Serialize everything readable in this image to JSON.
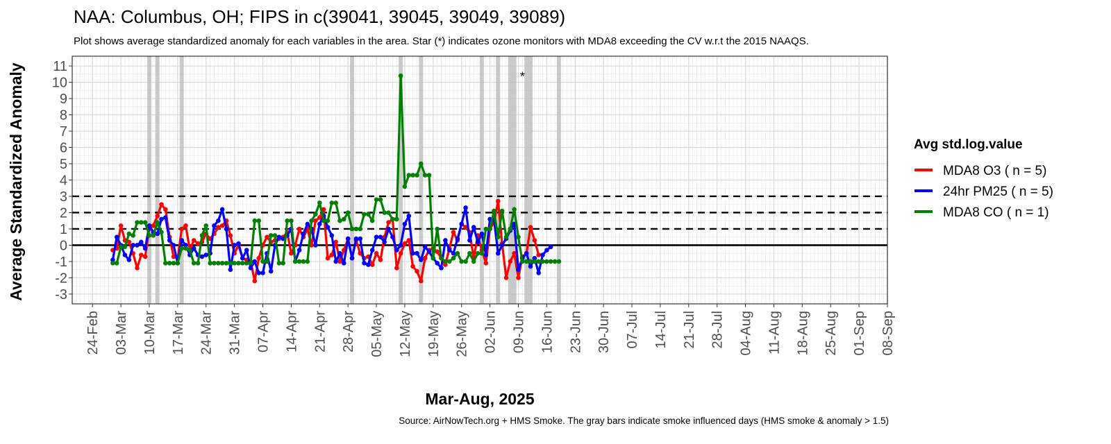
{
  "chart_data": {
    "type": "line",
    "title": "NAA: Columbus, OH; FIPS in c(39041, 39045, 39049, 39089)",
    "subtitle": "Plot shows average standardized anomaly for each variables in the area. Star (*) indicates ozone monitors with MDA8 exceeding the CV w.r.t the 2015 NAAQS.",
    "xlabel": "Mar-Aug, 2025",
    "ylabel": "Average Standardized Anomaly",
    "caption": "Source: AirNowTech.org + HMS Smoke. The gray bars indicate smoke influenced days (HMS smoke & anomaly > 1.5)",
    "ylim": [
      -3.6,
      11.6
    ],
    "xlim": [
      "2025-02-19",
      "2025-09-08"
    ],
    "x_ticks": [
      "24-Feb",
      "03-Mar",
      "10-Mar",
      "17-Mar",
      "24-Mar",
      "31-Mar",
      "07-Apr",
      "14-Apr",
      "21-Apr",
      "28-Apr",
      "05-May",
      "12-May",
      "19-May",
      "26-May",
      "02-Jun",
      "09-Jun",
      "16-Jun",
      "23-Jun",
      "30-Jun",
      "07-Jul",
      "14-Jul",
      "21-Jul",
      "28-Jul",
      "04-Aug",
      "11-Aug",
      "18-Aug",
      "25-Aug",
      "01-Sep",
      "08-Sep"
    ],
    "x_tick_dates": [
      "2025-02-24",
      "2025-03-03",
      "2025-03-10",
      "2025-03-17",
      "2025-03-24",
      "2025-03-31",
      "2025-04-07",
      "2025-04-14",
      "2025-04-21",
      "2025-04-28",
      "2025-05-05",
      "2025-05-12",
      "2025-05-19",
      "2025-05-26",
      "2025-06-02",
      "2025-06-09",
      "2025-06-16",
      "2025-06-23",
      "2025-06-30",
      "2025-07-07",
      "2025-07-14",
      "2025-07-21",
      "2025-07-28",
      "2025-08-04",
      "2025-08-11",
      "2025-08-18",
      "2025-08-25",
      "2025-09-01",
      "2025-09-08"
    ],
    "y_ticks": [
      -3,
      -2,
      -1,
      0,
      1,
      2,
      3,
      4,
      5,
      6,
      7,
      8,
      9,
      10,
      11
    ],
    "grid": true,
    "reference_lines": [
      {
        "y": 0,
        "style": "solid"
      },
      {
        "y": 1,
        "style": "dashed"
      },
      {
        "y": 2,
        "style": "dashed"
      },
      {
        "y": 3,
        "style": "dashed"
      }
    ],
    "smoke_days": [
      "2025-03-10",
      "2025-03-12",
      "2025-03-18",
      "2025-04-29",
      "2025-05-11",
      "2025-05-16",
      "2025-05-31",
      "2025-06-04",
      "2025-06-07",
      "2025-06-08",
      "2025-06-11",
      "2025-06-12",
      "2025-06-19"
    ],
    "star_annotations": [
      {
        "date": "2025-06-10",
        "y": 10.6,
        "label": "*"
      }
    ],
    "legend": {
      "title": "Avg std.log.value",
      "position": "right"
    },
    "start_date": "2025-03-01",
    "series": [
      {
        "name": "MDA8 O3 ( n = 5)",
        "color": "#ff0000",
        "values": [
          -0.3,
          -0.2,
          1.2,
          0.3,
          0.2,
          -0.5,
          -1.4,
          -0.6,
          -0.7,
          1.0,
          1.2,
          1.8,
          2.5,
          2.2,
          0.5,
          -0.7,
          -0.8,
          1.0,
          1.2,
          -0.3,
          0.3,
          0.1,
          0.2,
          0.7,
          0.4,
          0.7,
          1.1,
          1.2,
          1.5,
          0.6,
          -0.5,
          0.0,
          -0.8,
          -0.9,
          -1.0,
          -2.2,
          -0.8,
          0.0,
          0.5,
          0.2,
          0.3,
          0.4,
          0.5,
          0.8,
          -0.5,
          0.0,
          1.0,
          0.5,
          1.0,
          0.0,
          1.5,
          1.7,
          2.2,
          -0.8,
          -0.6,
          0.2,
          -1.0,
          -0.3,
          0.4,
          -0.8,
          0.3,
          -0.5,
          -0.8,
          -0.7,
          -1.2,
          -0.5,
          -0.9,
          0.5,
          1.4,
          1.6,
          -1.4,
          -0.5,
          0.1,
          0.3,
          -1.3,
          -1.6,
          -2.2,
          -0.8,
          -0.3,
          -0.2,
          -0.4,
          -0.8,
          -1.2,
          -0.2,
          0.8,
          0.3,
          1.3,
          1.1,
          0.8,
          -0.8,
          0.6,
          -0.3,
          -1.1,
          1.0,
          1.4,
          2.7,
          0.1,
          -2.0,
          -1.0,
          -0.5,
          -2.0,
          -0.7,
          -0.5,
          1.1,
          0.3,
          -0.6
        ]
      },
      {
        "name": "24hr PM25 ( n = 5)",
        "color": "#0000ff",
        "values": [
          -0.9,
          0.5,
          0.0,
          -0.6,
          -0.9,
          0.0,
          0.0,
          0.2,
          -0.2,
          1.2,
          0.8,
          0.7,
          1.6,
          1.7,
          0.3,
          0.0,
          -1.1,
          0.3,
          0.0,
          -0.6,
          -0.2,
          -0.6,
          -0.7,
          -0.6,
          -0.5,
          1.2,
          1.5,
          2.2,
          1.0,
          -1.5,
          0.0,
          0.1,
          -0.8,
          -0.3,
          -1.4,
          -1.0,
          -1.7,
          -1.7,
          -0.5,
          -1.6,
          0.0,
          0.5,
          0.4,
          0.6,
          1.0,
          -1.0,
          -0.3,
          0.7,
          1.3,
          1.0,
          0.0,
          1.3,
          1.8,
          1.1,
          0.6,
          -1.0,
          -0.5,
          -1.1,
          0.4,
          -0.8,
          0.4,
          0.4,
          -1.1,
          -1.2,
          -0.3,
          0.5,
          0.5,
          0.2,
          1.0,
          0.5,
          -0.3,
          0.0,
          1.3,
          1.8,
          -0.5,
          -0.5,
          -0.9,
          -0.1,
          -0.4,
          -0.8,
          -1.1,
          -1.4,
          0.3,
          -0.3,
          -0.5,
          0.4,
          1.3,
          2.3,
          0.3,
          1.1,
          0.2,
          0.7,
          -0.6,
          1.6,
          1.6,
          -0.5,
          0.0,
          0.4,
          0.9,
          1.3,
          -1.5,
          -0.8,
          -0.5,
          -1.3,
          -0.8,
          -1.7,
          -0.6,
          -0.3,
          -0.1
        ]
      },
      {
        "name": "MDA8 CO ( n = 1)",
        "color": "#008000",
        "values": [
          -1.1,
          -1.1,
          -0.1,
          -0.1,
          0.7,
          0.6,
          1.4,
          1.4,
          1.4,
          0.6,
          0.6,
          1.4,
          0.8,
          -1.1,
          -1.1,
          -1.1,
          -1.1,
          -0.2,
          -0.2,
          -0.3,
          -1.1,
          -1.1,
          0.6,
          1.2,
          -1.1,
          -1.1,
          -1.1,
          -1.1,
          -1.1,
          -1.1,
          -1.1,
          -1.1,
          -1.1,
          -1.1,
          -1.1,
          1.5,
          1.5,
          -1.0,
          -1.0,
          0.6,
          0.6,
          -1.1,
          -1.1,
          1.5,
          1.5,
          -1.0,
          -1.0,
          -1.0,
          -1.0,
          1.5,
          1.9,
          2.6,
          1.5,
          1.5,
          2.6,
          2.6,
          1.5,
          1.6,
          2.0,
          1.0,
          1.0,
          1.0,
          1.9,
          1.9,
          1.5,
          2.8,
          2.8,
          2.0,
          2.0,
          1.6,
          1.6,
          10.4,
          3.6,
          4.3,
          4.3,
          4.3,
          5.0,
          4.3,
          4.3,
          -0.8,
          1.0,
          -0.8,
          -1.0,
          -1.0,
          -0.8,
          -0.5,
          -1.0,
          -1.0,
          -0.5,
          -1.0,
          -0.5,
          -0.5,
          1.0,
          1.0,
          2.1,
          0.5,
          2.1,
          0.5,
          1.0,
          2.2,
          0.5,
          -1.0,
          -1.0,
          -1.0,
          -1.0,
          -1.0,
          -1.0,
          -1.0,
          -1.0,
          -1.0,
          -1.0
        ]
      }
    ]
  }
}
